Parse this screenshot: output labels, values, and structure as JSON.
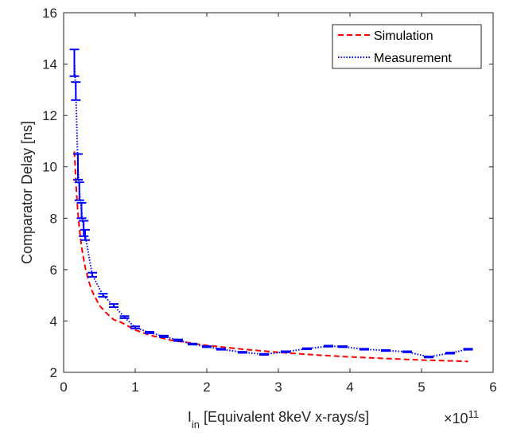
{
  "chart_data": {
    "type": "line",
    "xlabel": {
      "main": "I",
      "sub": "in",
      "rest": " [Equivalent 8keV x-rays/s]"
    },
    "ylabel": "Comparator Delay [ns]",
    "x_exponent": {
      "base": "×10",
      "power": "11"
    },
    "xlim": [
      0,
      6
    ],
    "ylim": [
      2,
      16
    ],
    "x_ticks": [
      0,
      1,
      2,
      3,
      4,
      5,
      6
    ],
    "y_ticks": [
      2,
      4,
      6,
      8,
      10,
      12,
      14,
      16
    ],
    "grid": false,
    "legend": "top-right",
    "series": [
      {
        "name": "Simulation",
        "style": "dashed",
        "color": "#ff0000",
        "x": [
          0.15,
          0.18,
          0.2,
          0.22,
          0.25,
          0.28,
          0.3,
          0.35,
          0.4,
          0.5,
          0.6,
          0.7,
          0.8,
          1.0,
          1.2,
          1.5,
          2.0,
          2.5,
          3.0,
          3.5,
          4.0,
          4.5,
          5.0,
          5.5,
          5.65
        ],
        "y": [
          10.6,
          9.0,
          8.2,
          7.6,
          6.9,
          6.4,
          6.1,
          5.55,
          5.15,
          4.6,
          4.3,
          4.05,
          3.95,
          3.65,
          3.45,
          3.25,
          3.05,
          2.9,
          2.78,
          2.68,
          2.6,
          2.54,
          2.48,
          2.44,
          2.42
        ]
      },
      {
        "name": "Measurement",
        "style": "dotted",
        "color": "#0000ff",
        "x": [
          0.15,
          0.17,
          0.2,
          0.22,
          0.25,
          0.28,
          0.3,
          0.4,
          0.55,
          0.7,
          0.85,
          1.0,
          1.2,
          1.4,
          1.6,
          1.8,
          2.0,
          2.2,
          2.5,
          2.8,
          3.1,
          3.4,
          3.7,
          3.9,
          4.2,
          4.5,
          4.8,
          5.1,
          5.4,
          5.65
        ],
        "y": [
          14.05,
          12.95,
          10.0,
          9.05,
          8.3,
          7.6,
          7.35,
          5.8,
          5.0,
          4.6,
          4.15,
          3.75,
          3.55,
          3.4,
          3.25,
          3.1,
          3.0,
          2.9,
          2.78,
          2.7,
          2.8,
          2.92,
          3.02,
          3.0,
          2.9,
          2.85,
          2.8,
          2.6,
          2.75,
          2.9
        ],
        "errors": [
          0.52,
          0.35,
          0.5,
          0.35,
          0.3,
          0.3,
          0.2,
          0.08,
          0.06,
          0.06,
          0.04,
          0.04,
          0.03,
          0.03,
          0.03,
          0.02,
          0.02,
          0.02,
          0.02,
          0.02,
          0.02,
          0.02,
          0.02,
          0.02,
          0.02,
          0.02,
          0.02,
          0.02,
          0.02,
          0.02
        ]
      }
    ]
  }
}
